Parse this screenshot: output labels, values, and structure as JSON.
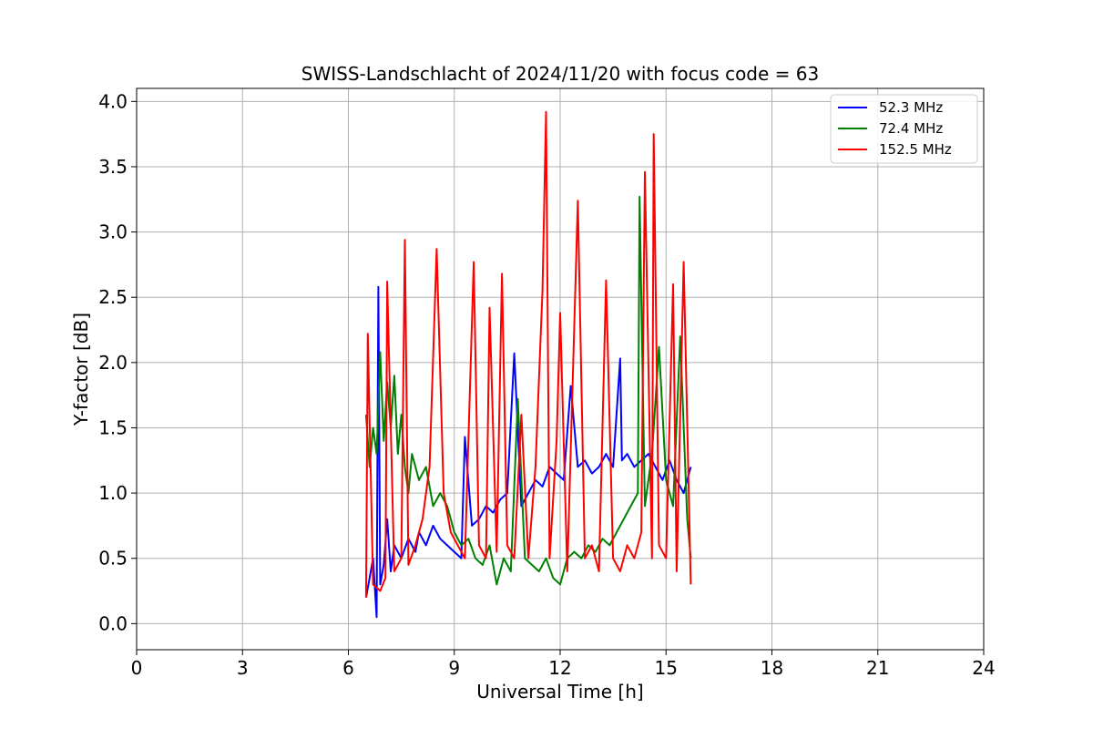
{
  "chart_data": {
    "type": "line",
    "title": "SWISS-Landschlacht of 2024/11/20 with focus code = 63",
    "xlabel": "Universal Time [h]",
    "ylabel": "Y-factor [dB]",
    "xlim": [
      0,
      24
    ],
    "ylim": [
      -0.2,
      4.1
    ],
    "xticks": [
      0,
      3,
      6,
      9,
      12,
      15,
      18,
      21,
      24
    ],
    "yticks": [
      0.0,
      0.5,
      1.0,
      1.5,
      2.0,
      2.5,
      3.0,
      3.5,
      4.0
    ],
    "ytick_labels": [
      "0.0",
      "0.5",
      "1.0",
      "1.5",
      "2.0",
      "2.5",
      "3.0",
      "3.5",
      "4.0"
    ],
    "grid": true,
    "legend_position": "top-right",
    "series": [
      {
        "name": " 52.3 MHz",
        "color": "#0000ff",
        "x": [
          6.5,
          6.6,
          6.7,
          6.8,
          6.85,
          6.9,
          7.0,
          7.1,
          7.2,
          7.3,
          7.5,
          7.7,
          7.9,
          8.0,
          8.2,
          8.4,
          8.6,
          8.8,
          9.0,
          9.2,
          9.3,
          9.5,
          9.7,
          9.9,
          10.1,
          10.3,
          10.5,
          10.7,
          10.9,
          11.1,
          11.3,
          11.5,
          11.7,
          11.9,
          12.1,
          12.3,
          12.5,
          12.7,
          12.9,
          13.1,
          13.3,
          13.5,
          13.7,
          13.75,
          13.9,
          14.1,
          14.3,
          14.5,
          14.7,
          14.9,
          15.1,
          15.3,
          15.5,
          15.7
        ],
        "y": [
          0.2,
          0.35,
          0.5,
          0.05,
          2.58,
          0.3,
          0.45,
          0.8,
          0.4,
          0.6,
          0.5,
          0.65,
          0.55,
          0.7,
          0.6,
          0.75,
          0.65,
          0.6,
          0.55,
          0.5,
          1.43,
          0.75,
          0.8,
          0.9,
          0.85,
          0.95,
          1.0,
          2.07,
          0.9,
          1.0,
          1.1,
          1.05,
          1.2,
          1.15,
          1.1,
          1.82,
          1.2,
          1.25,
          1.15,
          1.2,
          1.3,
          1.2,
          2.03,
          1.25,
          1.3,
          1.2,
          1.25,
          1.3,
          1.2,
          1.1,
          1.25,
          1.1,
          1.0,
          1.2
        ]
      },
      {
        "name": " 72.4 MHz",
        "color": "#008000",
        "x": [
          6.5,
          6.6,
          6.7,
          6.8,
          6.9,
          7.0,
          7.1,
          7.2,
          7.3,
          7.4,
          7.5,
          7.6,
          7.7,
          7.8,
          8.0,
          8.2,
          8.4,
          8.6,
          8.8,
          9.0,
          9.2,
          9.4,
          9.6,
          9.8,
          10.0,
          10.2,
          10.4,
          10.6,
          10.8,
          11.0,
          11.2,
          11.4,
          11.6,
          11.8,
          12.0,
          12.2,
          12.4,
          12.6,
          12.8,
          13.0,
          13.2,
          13.4,
          13.6,
          13.8,
          14.0,
          14.2,
          14.25,
          14.4,
          14.6,
          14.8,
          15.0,
          15.2,
          15.4,
          15.6,
          15.7
        ],
        "y": [
          1.6,
          1.2,
          1.5,
          1.3,
          2.08,
          1.4,
          1.85,
          1.5,
          1.9,
          1.3,
          1.6,
          1.2,
          1.0,
          1.3,
          1.1,
          1.2,
          0.9,
          1.0,
          0.9,
          0.7,
          0.6,
          0.65,
          0.5,
          0.45,
          0.6,
          0.3,
          0.5,
          0.4,
          1.72,
          0.5,
          0.45,
          0.4,
          0.5,
          0.35,
          0.3,
          0.5,
          0.55,
          0.5,
          0.6,
          0.55,
          0.65,
          0.6,
          0.7,
          0.8,
          0.9,
          1.0,
          3.27,
          0.9,
          1.3,
          2.12,
          1.1,
          0.9,
          2.2,
          0.8,
          0.5
        ]
      },
      {
        "name": "152.5 MHz",
        "color": "#ff0000",
        "x": [
          6.5,
          6.55,
          6.7,
          6.9,
          7.05,
          7.1,
          7.3,
          7.5,
          7.6,
          7.7,
          7.9,
          8.1,
          8.3,
          8.5,
          8.7,
          8.9,
          9.1,
          9.3,
          9.55,
          9.7,
          9.9,
          10.0,
          10.2,
          10.35,
          10.5,
          10.7,
          10.9,
          11.1,
          11.3,
          11.5,
          11.6,
          11.7,
          11.9,
          12.0,
          12.2,
          12.5,
          12.7,
          12.9,
          13.1,
          13.3,
          13.5,
          13.7,
          13.9,
          14.1,
          14.3,
          14.4,
          14.6,
          14.65,
          14.8,
          15.0,
          15.2,
          15.3,
          15.5,
          15.7
        ],
        "y": [
          0.2,
          2.22,
          0.3,
          0.25,
          0.35,
          2.62,
          0.4,
          0.5,
          2.94,
          0.45,
          0.6,
          0.8,
          1.2,
          2.87,
          1.0,
          0.7,
          0.6,
          0.5,
          2.77,
          0.6,
          0.5,
          2.42,
          0.55,
          2.68,
          0.6,
          0.5,
          1.6,
          0.5,
          1.2,
          2.55,
          3.92,
          0.5,
          1.4,
          2.38,
          0.4,
          3.24,
          0.5,
          0.6,
          0.4,
          2.63,
          0.5,
          0.4,
          0.6,
          0.5,
          0.7,
          3.46,
          0.5,
          3.75,
          0.6,
          0.5,
          2.6,
          0.4,
          2.77,
          0.3
        ]
      }
    ]
  }
}
